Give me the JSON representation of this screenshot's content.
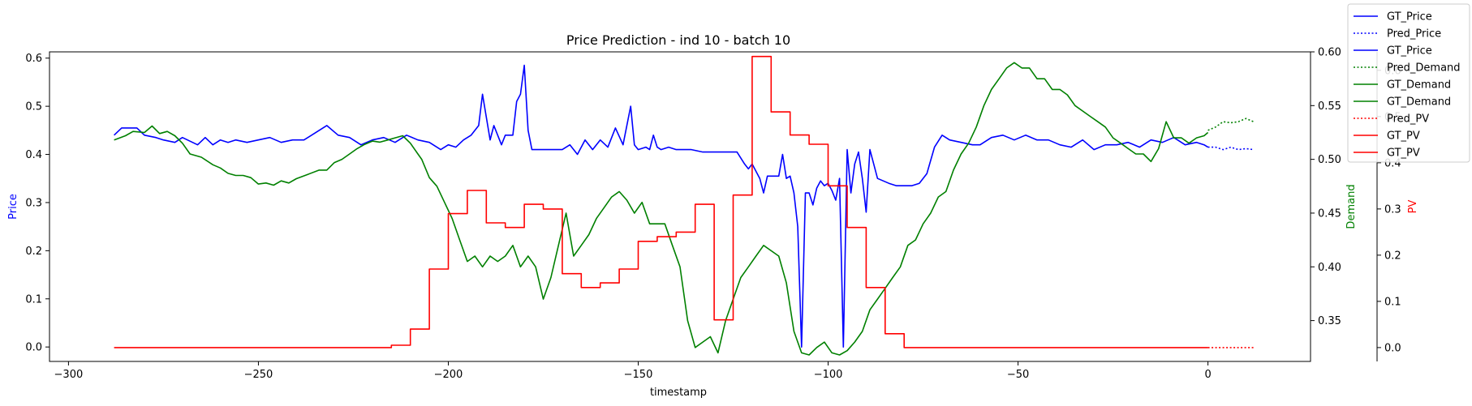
{
  "chart_data": {
    "type": "line",
    "title": "Price Prediction - ind 10 - batch 10",
    "xlabel": "timestamp",
    "xlim": [
      -305,
      27
    ],
    "xticks": [
      -300,
      -250,
      -200,
      -150,
      -100,
      -50,
      0
    ],
    "axes": {
      "price": {
        "label": "Price",
        "color": "#0000ff",
        "ylim": [
          -0.03,
          0.613
        ],
        "ticks": [
          0.0,
          0.1,
          0.2,
          0.3,
          0.4,
          0.5,
          0.6
        ]
      },
      "demand": {
        "label": "Demand",
        "color": "#008000",
        "ylim": [
          0.312,
          0.6
        ],
        "ticks": [
          0.35,
          0.4,
          0.45,
          0.5,
          0.55,
          0.6
        ]
      },
      "pv": {
        "label": "PV",
        "color": "#ff0000",
        "ylim": [
          -0.03,
          0.64
        ],
        "ticks": [
          0.0,
          0.1,
          0.2,
          0.3,
          0.4,
          0.5,
          0.6
        ]
      }
    },
    "legend_position": "top-right",
    "legend": [
      {
        "name": "GT_Price",
        "color": "#0000ff",
        "dash": false
      },
      {
        "name": "Pred_Price",
        "color": "#0000ff",
        "dash": true
      },
      {
        "name": "GT_Price",
        "color": "#0000ff",
        "dash": false
      },
      {
        "name": "Pred_Demand",
        "color": "#008000",
        "dash": true
      },
      {
        "name": "GT_Demand",
        "color": "#008000",
        "dash": false
      },
      {
        "name": "GT_Demand",
        "color": "#008000",
        "dash": false
      },
      {
        "name": "Pred_PV",
        "color": "#ff0000",
        "dash": true
      },
      {
        "name": "GT_PV",
        "color": "#ff0000",
        "dash": false
      },
      {
        "name": "GT_PV",
        "color": "#ff0000",
        "dash": false
      }
    ],
    "series": [
      {
        "name": "GT_Price",
        "axis": "price",
        "color": "#0000ff",
        "dash": false,
        "x": [
          -288,
          -286,
          -282,
          -280,
          -277,
          -275,
          -272,
          -270,
          -266,
          -264,
          -262,
          -260,
          -258,
          -256,
          -253,
          -250,
          -247,
          -244,
          -241,
          -238,
          -235,
          -232,
          -229,
          -226,
          -223,
          -220,
          -217,
          -214,
          -211,
          -208,
          -205,
          -202,
          -200,
          -198,
          -196,
          -194,
          -192,
          -191,
          -189,
          -188,
          -186,
          -185,
          -183,
          -182,
          -181,
          -180,
          -179,
          -178,
          -176,
          -173,
          -170,
          -168,
          -166,
          -164,
          -162,
          -160,
          -158,
          -156,
          -154,
          -152,
          -151,
          -150,
          -148,
          -147,
          -146,
          -145,
          -144,
          -142,
          -140,
          -136,
          -133,
          -130,
          -127,
          -124,
          -122,
          -121,
          -120,
          -118,
          -117,
          -116,
          -115,
          -113,
          -112,
          -111,
          -110,
          -109,
          -108,
          -107,
          -106,
          -105,
          -104,
          -103,
          -102,
          -101,
          -100,
          -99,
          -98,
          -97,
          -96,
          -95,
          -94,
          -93,
          -92,
          -91,
          -90,
          -89,
          -87,
          -84,
          -82,
          -80,
          -78,
          -76,
          -74,
          -72,
          -70,
          -68,
          -65,
          -62,
          -60,
          -57,
          -54,
          -51,
          -48,
          -45,
          -42,
          -39,
          -36,
          -33,
          -30,
          -27,
          -24,
          -21,
          -18,
          -15,
          -12,
          -9,
          -6,
          -3,
          -1,
          0
        ],
        "values": [
          0.44,
          0.455,
          0.455,
          0.44,
          0.435,
          0.43,
          0.425,
          0.435,
          0.42,
          0.435,
          0.42,
          0.43,
          0.425,
          0.43,
          0.425,
          0.43,
          0.435,
          0.425,
          0.43,
          0.43,
          0.445,
          0.46,
          0.44,
          0.435,
          0.42,
          0.43,
          0.435,
          0.425,
          0.44,
          0.43,
          0.425,
          0.41,
          0.42,
          0.415,
          0.43,
          0.44,
          0.46,
          0.525,
          0.43,
          0.46,
          0.42,
          0.44,
          0.44,
          0.51,
          0.525,
          0.585,
          0.45,
          0.41,
          0.41,
          0.41,
          0.41,
          0.42,
          0.4,
          0.43,
          0.41,
          0.43,
          0.415,
          0.455,
          0.42,
          0.5,
          0.42,
          0.41,
          0.415,
          0.41,
          0.44,
          0.415,
          0.41,
          0.415,
          0.41,
          0.41,
          0.405,
          0.405,
          0.405,
          0.405,
          0.38,
          0.37,
          0.38,
          0.35,
          0.32,
          0.355,
          0.355,
          0.355,
          0.4,
          0.35,
          0.355,
          0.32,
          0.25,
          0.0,
          0.32,
          0.32,
          0.295,
          0.33,
          0.345,
          0.335,
          0.34,
          0.325,
          0.305,
          0.35,
          0.0,
          0.41,
          0.32,
          0.38,
          0.405,
          0.35,
          0.28,
          0.41,
          0.35,
          0.34,
          0.335,
          0.335,
          0.335,
          0.34,
          0.36,
          0.415,
          0.44,
          0.43,
          0.425,
          0.42,
          0.42,
          0.435,
          0.44,
          0.43,
          0.44,
          0.43,
          0.43,
          0.42,
          0.415,
          0.43,
          0.41,
          0.42,
          0.42,
          0.425,
          0.415,
          0.43,
          0.425,
          0.435,
          0.42,
          0.425,
          0.42,
          0.415
        ]
      },
      {
        "name": "Pred_Price",
        "axis": "price",
        "color": "#0000ff",
        "dash": true,
        "x": [
          0,
          2,
          4,
          6,
          8,
          10,
          12
        ],
        "values": [
          0.415,
          0.415,
          0.41,
          0.415,
          0.41,
          0.412,
          0.41
        ]
      },
      {
        "name": "GT_Demand",
        "axis": "demand",
        "color": "#008000",
        "dash": false,
        "x": [
          -288,
          -285,
          -283,
          -280,
          -278,
          -276,
          -274,
          -272,
          -270,
          -268,
          -265,
          -262,
          -260,
          -258,
          -256,
          -254,
          -252,
          -250,
          -248,
          -246,
          -244,
          -242,
          -240,
          -237,
          -234,
          -232,
          -230,
          -228,
          -226,
          -224,
          -222,
          -220,
          -218,
          -216,
          -214,
          -212,
          -210,
          -208,
          -207,
          -205,
          -203,
          -201,
          -199,
          -197,
          -195,
          -193,
          -191,
          -189,
          -187,
          -185,
          -183,
          -181,
          -179,
          -177,
          -175,
          -173,
          -171,
          -169,
          -167,
          -165,
          -163,
          -161,
          -159,
          -157,
          -155,
          -153,
          -151,
          -149,
          -147,
          -145,
          -143,
          -141,
          -139,
          -137,
          -135,
          -133,
          -131,
          -129,
          -127,
          -125,
          -123,
          -121,
          -119,
          -117,
          -115,
          -113,
          -111,
          -109,
          -107,
          -105,
          -103,
          -101,
          -99,
          -97,
          -95,
          -93,
          -91,
          -89,
          -87,
          -85,
          -83,
          -81,
          -79,
          -77,
          -75,
          -73,
          -71,
          -69,
          -67,
          -65,
          -63,
          -61,
          -59,
          -57,
          -55,
          -53,
          -51,
          -49,
          -47,
          -45,
          -43,
          -41,
          -39,
          -37,
          -35,
          -33,
          -31,
          -29,
          -27,
          -25,
          -23,
          -21,
          -19,
          -17,
          -15,
          -13,
          -11,
          -9,
          -7,
          -5,
          -3,
          -1,
          0
        ],
        "values": [
          0.518,
          0.522,
          0.526,
          0.525,
          0.531,
          0.524,
          0.526,
          0.522,
          0.515,
          0.505,
          0.502,
          0.495,
          0.492,
          0.487,
          0.485,
          0.485,
          0.483,
          0.477,
          0.478,
          0.476,
          0.48,
          0.478,
          0.482,
          0.486,
          0.49,
          0.49,
          0.497,
          0.5,
          0.505,
          0.51,
          0.514,
          0.517,
          0.516,
          0.518,
          0.52,
          0.522,
          0.515,
          0.505,
          0.5,
          0.483,
          0.475,
          0.46,
          0.445,
          0.425,
          0.405,
          0.41,
          0.4,
          0.41,
          0.405,
          0.41,
          0.42,
          0.4,
          0.41,
          0.4,
          0.37,
          0.39,
          0.42,
          0.45,
          0.41,
          0.42,
          0.43,
          0.445,
          0.455,
          0.465,
          0.47,
          0.462,
          0.45,
          0.46,
          0.44,
          0.44,
          0.44,
          0.42,
          0.4,
          0.35,
          0.325,
          0.33,
          0.335,
          0.32,
          0.35,
          0.37,
          0.39,
          0.4,
          0.41,
          0.42,
          0.415,
          0.41,
          0.385,
          0.34,
          0.32,
          0.318,
          0.325,
          0.33,
          0.32,
          0.318,
          0.322,
          0.33,
          0.34,
          0.36,
          0.37,
          0.38,
          0.39,
          0.4,
          0.42,
          0.425,
          0.44,
          0.45,
          0.465,
          0.47,
          0.49,
          0.505,
          0.515,
          0.53,
          0.55,
          0.565,
          0.575,
          0.585,
          0.59,
          0.585,
          0.585,
          0.575,
          0.575,
          0.565,
          0.565,
          0.56,
          0.55,
          0.545,
          0.54,
          0.535,
          0.53,
          0.52,
          0.515,
          0.51,
          0.505,
          0.505,
          0.498,
          0.51,
          0.535,
          0.52,
          0.52,
          0.515,
          0.52,
          0.522,
          0.525
        ]
      },
      {
        "name": "Pred_Demand",
        "axis": "demand",
        "color": "#008000",
        "dash": true,
        "x": [
          0,
          2,
          4,
          6,
          8,
          10,
          12
        ],
        "values": [
          0.527,
          0.53,
          0.535,
          0.534,
          0.535,
          0.538,
          0.535
        ]
      },
      {
        "name": "GT_PV",
        "axis": "pv",
        "color": "#ff0000",
        "dash": false,
        "x": [
          -288,
          -215,
          -215,
          -210,
          -210,
          -205,
          -205,
          -200,
          -200,
          -195,
          -195,
          -190,
          -190,
          -185,
          -185,
          -180,
          -180,
          -175,
          -175,
          -170,
          -170,
          -165,
          -165,
          -160,
          -160,
          -155,
          -155,
          -150,
          -150,
          -145,
          -145,
          -140,
          -140,
          -135,
          -135,
          -130,
          -130,
          -125,
          -125,
          -120,
          -120,
          -115,
          -115,
          -110,
          -110,
          -105,
          -105,
          -100,
          -100,
          -95,
          -95,
          -90,
          -90,
          -85,
          -85,
          -80,
          -80,
          -75,
          -75,
          -70,
          -70,
          -65,
          -65,
          -60,
          -60,
          -55,
          -55,
          -50,
          0
        ],
        "values": [
          0.0,
          0.0,
          0.005,
          0.005,
          0.04,
          0.04,
          0.17,
          0.17,
          0.29,
          0.29,
          0.34,
          0.34,
          0.27,
          0.27,
          0.26,
          0.26,
          0.31,
          0.31,
          0.3,
          0.3,
          0.16,
          0.16,
          0.13,
          0.13,
          0.14,
          0.14,
          0.17,
          0.17,
          0.23,
          0.23,
          0.24,
          0.24,
          0.25,
          0.25,
          0.31,
          0.31,
          0.06,
          0.06,
          0.33,
          0.33,
          0.63,
          0.63,
          0.51,
          0.51,
          0.46,
          0.46,
          0.44,
          0.44,
          0.35,
          0.35,
          0.26,
          0.26,
          0.13,
          0.13,
          0.03,
          0.03,
          0.0,
          0.0,
          0.0,
          0.0,
          0.0,
          0.0,
          0.0,
          0.0,
          0.0,
          0.0,
          0.0,
          0.0,
          0.0
        ]
      },
      {
        "name": "Pred_PV",
        "axis": "pv",
        "color": "#ff0000",
        "dash": true,
        "x": [
          0,
          12
        ],
        "values": [
          0.0,
          0.0
        ]
      }
    ]
  }
}
